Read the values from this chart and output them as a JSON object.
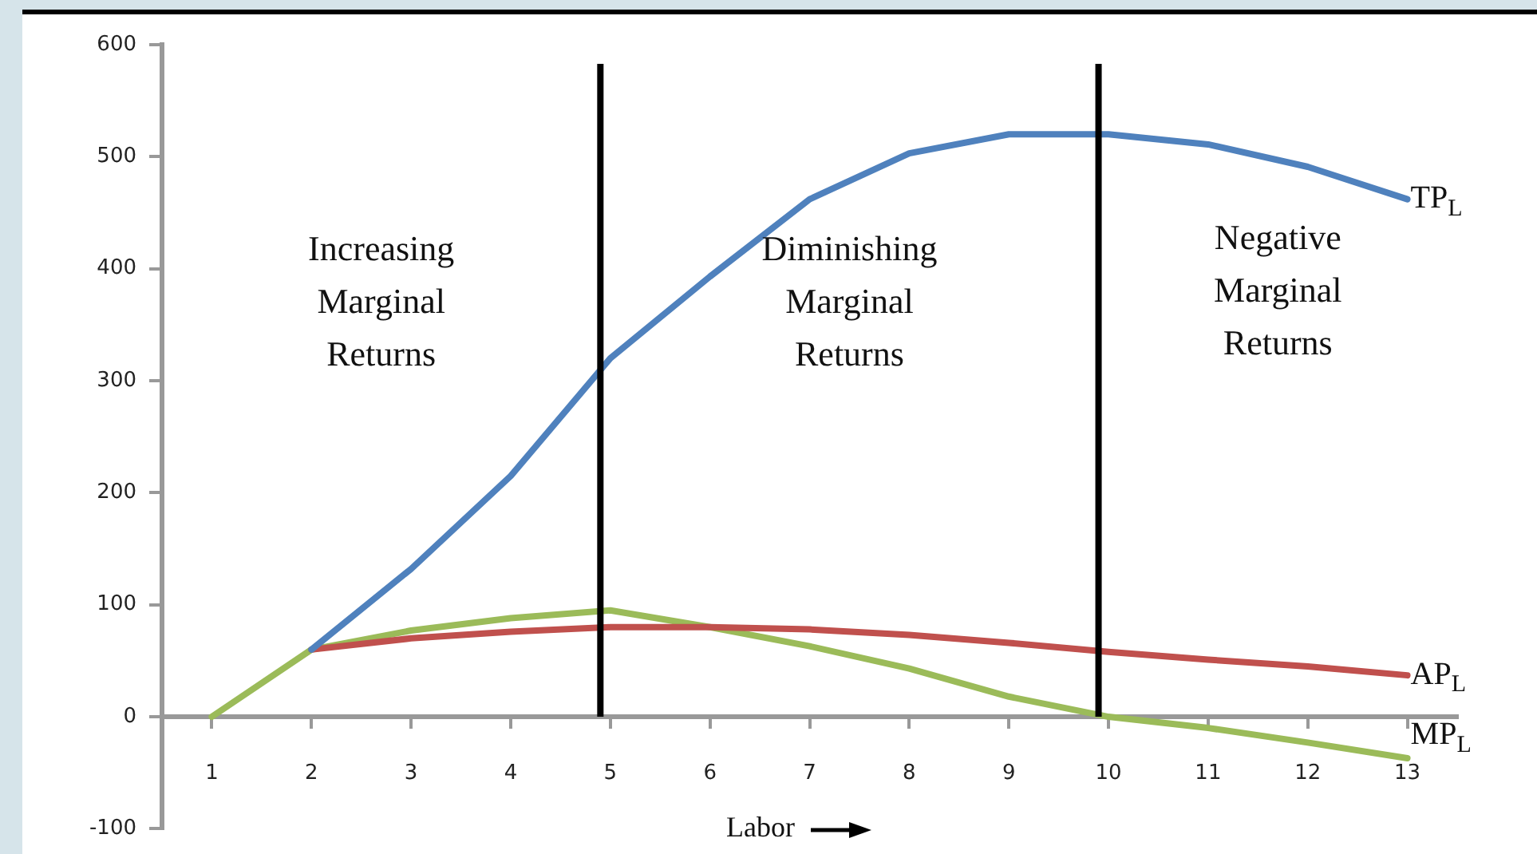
{
  "chart_data": {
    "type": "line",
    "xlabel": "Labor",
    "x": [
      1,
      2,
      3,
      4,
      5,
      6,
      7,
      8,
      9,
      10,
      11,
      12,
      13
    ],
    "series": [
      {
        "name": "TP$_{L}$",
        "color": "#4f81bd",
        "values": [
          null,
          60,
          132,
          215,
          320,
          393,
          462,
          503,
          520,
          520,
          511,
          491,
          462
        ]
      },
      {
        "name": "AP$_{L}$",
        "color": "#c0504d",
        "values": [
          null,
          60,
          70,
          76,
          80,
          80,
          78,
          73,
          66,
          58,
          51,
          45,
          37
        ]
      },
      {
        "name": "MP$_{L}$",
        "color": "#9bbb59",
        "values": [
          0,
          60,
          77,
          88,
          95,
          80,
          63,
          43,
          18,
          0,
          -10,
          -23,
          -37
        ]
      }
    ],
    "xlim": [
      0.5,
      13.5
    ],
    "xticks": [
      1,
      2,
      3,
      4,
      5,
      6,
      7,
      8,
      9,
      10,
      11,
      12,
      13
    ],
    "ylim": [
      -100,
      600
    ],
    "yticks": [
      -100,
      0,
      100,
      200,
      300,
      400,
      500,
      600
    ],
    "ref_lines": [
      {
        "axis": "x",
        "value": 4.9,
        "color": "#000000"
      },
      {
        "axis": "x",
        "value": 9.9,
        "color": "#000000"
      }
    ],
    "annotations": [
      "Increasing Marginal Returns",
      "Diminishing Marginal Returns",
      "Negative Marginal Returns"
    ],
    "grid": false,
    "legend": false,
    "marker": "none",
    "line_style": "solid"
  }
}
